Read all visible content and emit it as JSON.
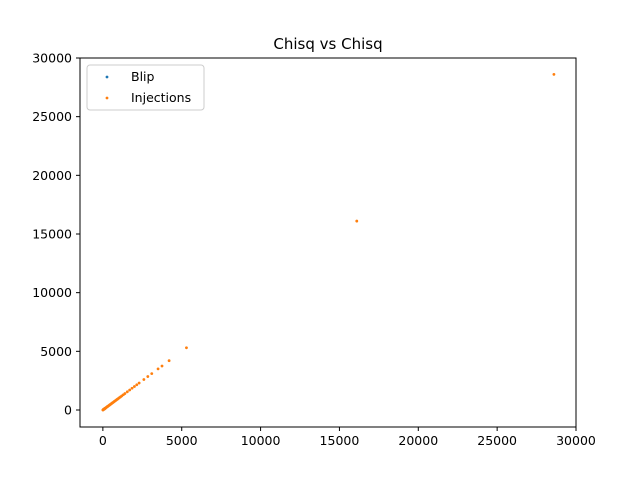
{
  "chart_data": {
    "type": "scatter",
    "title": "Chisq vs Chisq",
    "xlabel": "",
    "ylabel": "",
    "xlim": [
      -1450,
      30000
    ],
    "ylim": [
      -1450,
      30000
    ],
    "xticks": [
      0,
      5000,
      10000,
      15000,
      20000,
      25000,
      30000
    ],
    "yticks": [
      0,
      5000,
      10000,
      15000,
      20000,
      25000,
      30000
    ],
    "grid": false,
    "legend_position": "upper-left",
    "series": [
      {
        "name": "Blip",
        "color": "#1f77b4",
        "x": [
          20,
          60,
          100,
          150
        ],
        "y": [
          20,
          60,
          100,
          150
        ]
      },
      {
        "name": "Injections",
        "color": "#ff7f0e",
        "x": [
          0,
          20,
          40,
          60,
          80,
          100,
          120,
          140,
          170,
          200,
          230,
          260,
          290,
          320,
          360,
          400,
          440,
          480,
          520,
          560,
          600,
          650,
          700,
          750,
          800,
          860,
          920,
          980,
          1050,
          1120,
          1200,
          1300,
          1400,
          1550,
          1700,
          1850,
          2000,
          2150,
          2300,
          2600,
          2850,
          3100,
          3500,
          3750,
          4200,
          5300,
          16100,
          28600
        ],
        "y": [
          0,
          20,
          40,
          60,
          80,
          100,
          120,
          140,
          170,
          200,
          230,
          260,
          290,
          320,
          360,
          400,
          440,
          480,
          520,
          560,
          600,
          650,
          700,
          750,
          800,
          860,
          920,
          980,
          1050,
          1120,
          1200,
          1300,
          1400,
          1550,
          1700,
          1850,
          2000,
          2150,
          2300,
          2600,
          2850,
          3100,
          3500,
          3750,
          4200,
          5300,
          16100,
          28600
        ]
      }
    ]
  }
}
